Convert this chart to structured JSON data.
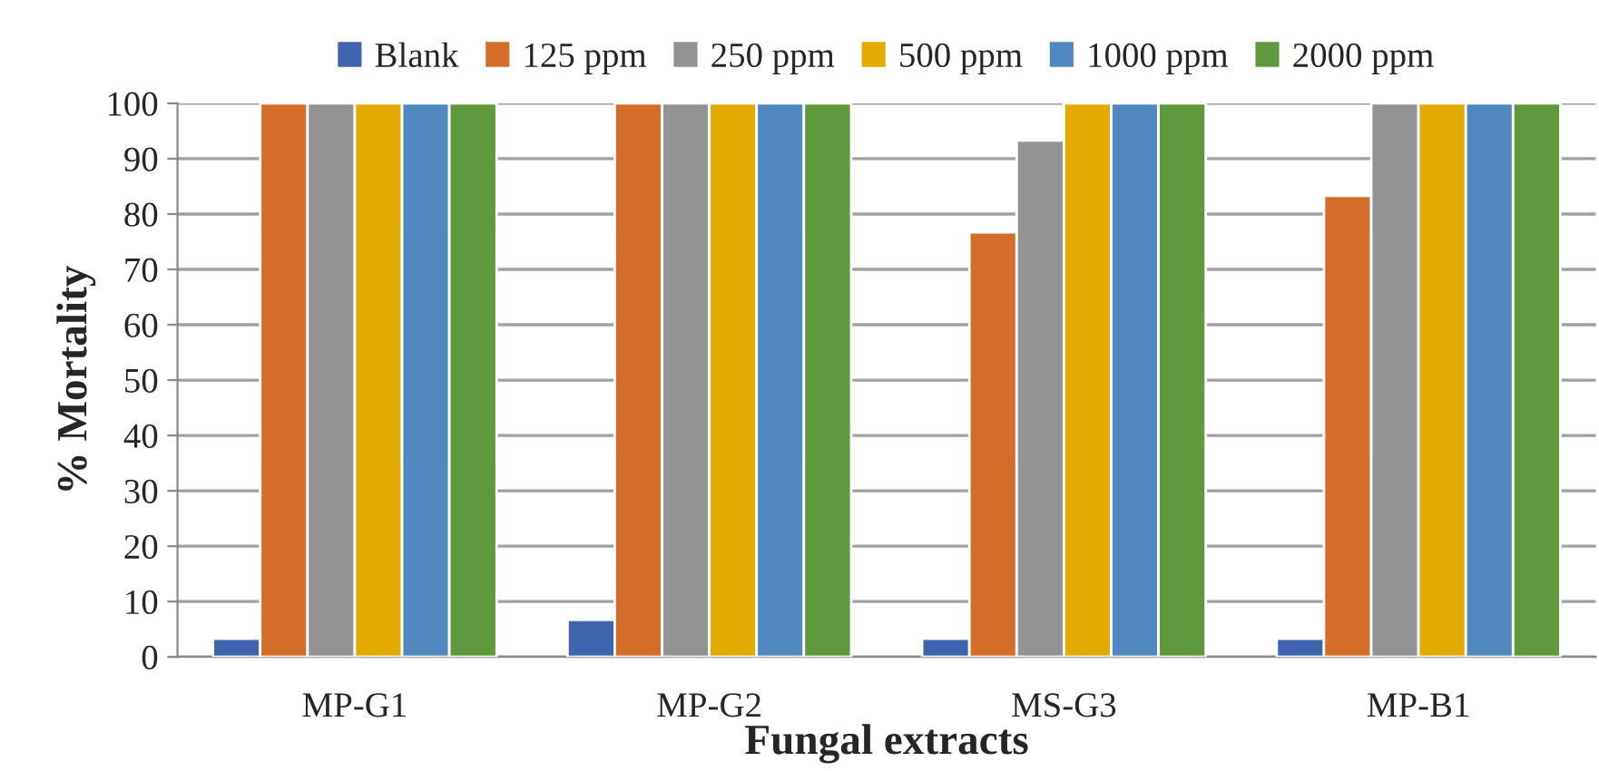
{
  "chart_data": {
    "type": "bar",
    "xlabel": "Fungal extracts",
    "ylabel": "% Mortality",
    "categories": [
      "MP-G1",
      "MP-G2",
      "MS-G3",
      "MP-B1"
    ],
    "series": [
      {
        "name": "Blank",
        "color": "#3f64ae",
        "values": [
          3.3,
          6.7,
          3.3,
          3.3
        ]
      },
      {
        "name": "125 ppm",
        "color": "#d46d2a",
        "values": [
          100,
          100,
          76.7,
          83.3
        ]
      },
      {
        "name": "250 ppm",
        "color": "#939393",
        "values": [
          100,
          100,
          93.3,
          100
        ]
      },
      {
        "name": "500 ppm",
        "color": "#e3aa00",
        "values": [
          100,
          100,
          100,
          100
        ]
      },
      {
        "name": "1000 ppm",
        "color": "#4f89c0",
        "values": [
          100,
          100,
          100,
          100
        ]
      },
      {
        "name": "2000 ppm",
        "color": "#5f993e",
        "values": [
          100,
          100,
          100,
          100
        ]
      }
    ],
    "ylim": [
      0,
      100
    ],
    "yticks": [
      0,
      10,
      20,
      30,
      40,
      50,
      60,
      70,
      80,
      90,
      100
    ],
    "grid": "y",
    "legend": "top"
  }
}
